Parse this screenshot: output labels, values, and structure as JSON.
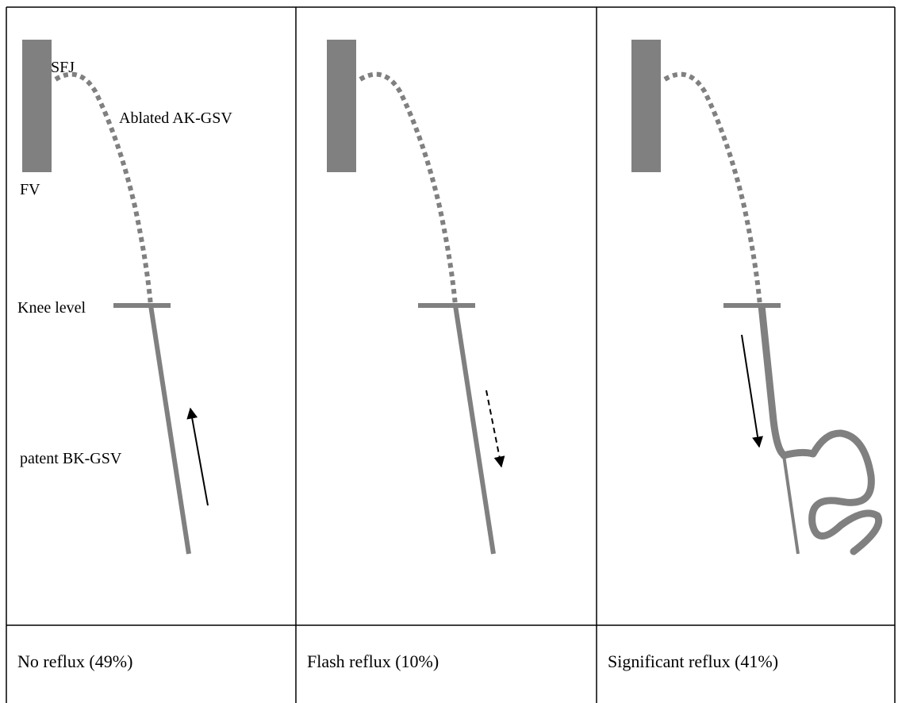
{
  "labels": {
    "sfj": "SFJ",
    "ablated": "Ablated AK-GSV",
    "fv": "FV",
    "knee": "Knee level",
    "patent": "patent BK-GSV"
  },
  "captions": [
    "No reflux (49%)",
    "Flash reflux (10%)",
    "Significant reflux (41%)"
  ]
}
